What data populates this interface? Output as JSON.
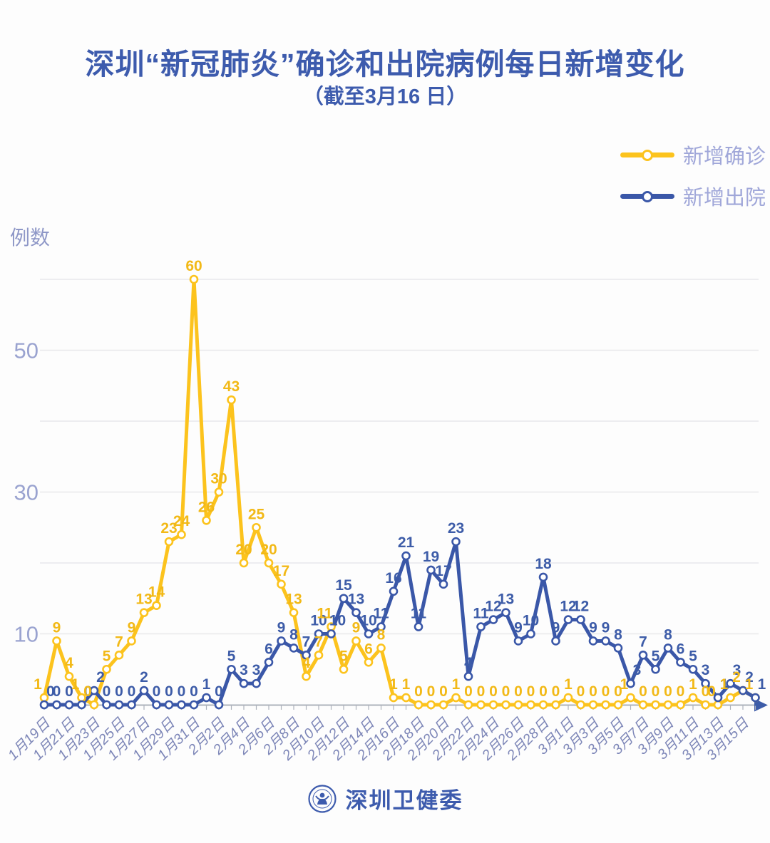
{
  "title": "深圳“新冠肺炎”确诊和出院病例每日新增变化",
  "subtitle": "（截至3月16 日）",
  "y_axis_title": "例数",
  "legend": {
    "confirmed": "新增确诊",
    "discharged": "新增出院"
  },
  "footer": {
    "text": "深圳卫健委"
  },
  "colors": {
    "confirmed_yellow": "#fcc31d",
    "discharged_blue": "#3a57a8",
    "confirmed_label": "#f2b917",
    "discharged_label": "#3d5ca8",
    "title_blue": "#3d5bad",
    "axis_arrow_blue": "#3d5ca8",
    "date_label": "#7e87b8",
    "y_tick_label": "#9aa3d0",
    "gridline": "#e8e8eb",
    "axis_line": "#adb2bc"
  },
  "chart_data": {
    "type": "line",
    "title": "深圳“新冠肺炎”确诊和出院病例每日新增变化",
    "subtitle": "（截至3月16 日）",
    "ylabel": "例数",
    "ylim": [
      0,
      63
    ],
    "y_ticks": [
      10,
      30,
      50
    ],
    "grid": "horizontal, every 10 units from 10 to 60",
    "legend_position": "top-right",
    "x_tick_label_step": 2,
    "point_labels": true,
    "x": [
      "1月19日",
      "1月20日",
      "1月21日",
      "1月22日",
      "1月23日",
      "1月24日",
      "1月25日",
      "1月26日",
      "1月27日",
      "1月28日",
      "1月29日",
      "1月30日",
      "1月31日",
      "2月1日",
      "2月2日",
      "2月3日",
      "2月4日",
      "2月5日",
      "2月6日",
      "2月7日",
      "2月8日",
      "2月9日",
      "2月10日",
      "2月11日",
      "2月12日",
      "2月13日",
      "2月14日",
      "2月15日",
      "2月16日",
      "2月17日",
      "2月18日",
      "2月19日",
      "2月20日",
      "2月21日",
      "2月22日",
      "2月23日",
      "2月24日",
      "2月25日",
      "2月26日",
      "2月27日",
      "2月28日",
      "2月29日",
      "3月1日",
      "3月2日",
      "3月3日",
      "3月4日",
      "3月5日",
      "3月6日",
      "3月7日",
      "3月8日",
      "3月9日",
      "3月10日",
      "3月11日",
      "3月12日",
      "3月13日",
      "3月14日",
      "3月15日",
      "3月16日"
    ],
    "series": [
      {
        "name": "新增确诊",
        "color": "#fcc31d",
        "label_color": "#f2b917",
        "values": [
          1,
          9,
          4,
          1,
          0,
          5,
          7,
          9,
          13,
          14,
          23,
          24,
          60,
          26,
          30,
          43,
          20,
          25,
          20,
          17,
          13,
          4,
          7,
          11,
          5,
          9,
          6,
          8,
          1,
          1,
          0,
          0,
          0,
          1,
          0,
          0,
          0,
          0,
          0,
          0,
          0,
          0,
          1,
          0,
          0,
          0,
          0,
          1,
          0,
          0,
          0,
          0,
          1,
          0,
          0,
          1,
          2,
          1
        ]
      },
      {
        "name": "新增出院",
        "color": "#3a57a8",
        "label_color": "#3d5ca8",
        "values": [
          0,
          0,
          0,
          0,
          2,
          0,
          0,
          0,
          2,
          0,
          0,
          0,
          0,
          1,
          0,
          5,
          3,
          3,
          6,
          9,
          8,
          7,
          10,
          10,
          15,
          13,
          10,
          11,
          16,
          21,
          11,
          19,
          17,
          23,
          4,
          11,
          12,
          13,
          9,
          10,
          18,
          9,
          12,
          12,
          9,
          9,
          8,
          3,
          7,
          5,
          8,
          6,
          5,
          3,
          1,
          3,
          2,
          1
        ]
      }
    ]
  }
}
